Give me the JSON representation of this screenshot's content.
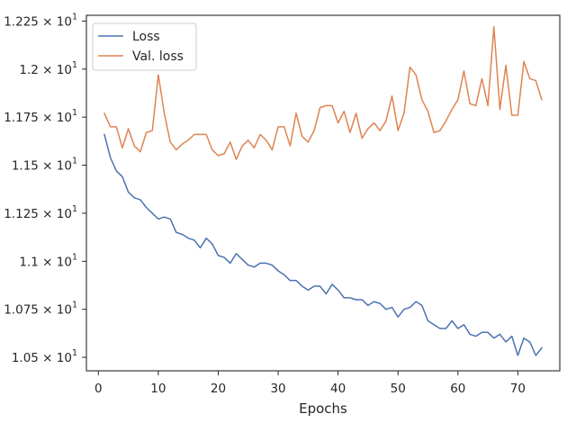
{
  "chart_data": {
    "type": "line",
    "title": "",
    "xlabel": "Epochs",
    "ylabel": "",
    "xlim": [
      -2,
      77
    ],
    "ylim": [
      10.43,
      12.28
    ],
    "grid": false,
    "legend_position": "top-left",
    "x_ticks": [
      0,
      10,
      20,
      30,
      40,
      50,
      60,
      70
    ],
    "x_tick_labels": [
      "0",
      "10",
      "20",
      "30",
      "40",
      "50",
      "60",
      "70"
    ],
    "y_ticks": [
      10.5,
      10.75,
      11.0,
      11.25,
      11.5,
      11.75,
      12.0,
      12.25
    ],
    "y_tick_labels": [
      {
        "mantissa": "1.05",
        "exponent": "1"
      },
      {
        "mantissa": "1.075",
        "exponent": "1"
      },
      {
        "mantissa": "1.1",
        "exponent": "1"
      },
      {
        "mantissa": "1.125",
        "exponent": "1"
      },
      {
        "mantissa": "1.15",
        "exponent": "1"
      },
      {
        "mantissa": "1.175",
        "exponent": "1"
      },
      {
        "mantissa": "1.2",
        "exponent": "1"
      },
      {
        "mantissa": "1.225",
        "exponent": "1"
      }
    ],
    "x": [
      1,
      2,
      3,
      4,
      5,
      6,
      7,
      8,
      9,
      10,
      11,
      12,
      13,
      14,
      15,
      16,
      17,
      18,
      19,
      20,
      21,
      22,
      23,
      24,
      25,
      26,
      27,
      28,
      29,
      30,
      31,
      32,
      33,
      34,
      35,
      36,
      37,
      38,
      39,
      40,
      41,
      42,
      43,
      44,
      45,
      46,
      47,
      48,
      49,
      50,
      51,
      52,
      53,
      54,
      55,
      56,
      57,
      58,
      59,
      60,
      61,
      62,
      63,
      64,
      65,
      66,
      67,
      68,
      69,
      70,
      71,
      72,
      73,
      74
    ],
    "series": [
      {
        "name": "Loss",
        "color": "#4c72b0",
        "values": [
          11.66,
          11.54,
          11.47,
          11.44,
          11.36,
          11.33,
          11.32,
          11.28,
          11.25,
          11.22,
          11.23,
          11.22,
          11.15,
          11.14,
          11.12,
          11.11,
          11.07,
          11.12,
          11.09,
          11.03,
          11.02,
          10.99,
          11.04,
          11.01,
          10.98,
          10.97,
          10.99,
          10.99,
          10.98,
          10.95,
          10.93,
          10.9,
          10.9,
          10.87,
          10.85,
          10.87,
          10.87,
          10.83,
          10.88,
          10.85,
          10.81,
          10.81,
          10.8,
          10.8,
          10.77,
          10.79,
          10.78,
          10.75,
          10.76,
          10.71,
          10.75,
          10.76,
          10.79,
          10.77,
          10.69,
          10.67,
          10.65,
          10.65,
          10.69,
          10.65,
          10.67,
          10.62,
          10.61,
          10.63,
          10.63,
          10.6,
          10.62,
          10.58,
          10.61,
          10.51,
          10.6,
          10.58,
          10.51,
          10.55
        ]
      },
      {
        "name": "Val. loss",
        "color": "#dd8452",
        "values": [
          11.77,
          11.7,
          11.7,
          11.59,
          11.69,
          11.6,
          11.57,
          11.67,
          11.68,
          11.97,
          11.77,
          11.62,
          11.58,
          11.61,
          11.63,
          11.66,
          11.66,
          11.66,
          11.58,
          11.55,
          11.56,
          11.62,
          11.53,
          11.6,
          11.63,
          11.59,
          11.66,
          11.63,
          11.58,
          11.7,
          11.7,
          11.6,
          11.77,
          11.65,
          11.62,
          11.68,
          11.8,
          11.81,
          11.81,
          11.72,
          11.78,
          11.67,
          11.77,
          11.64,
          11.69,
          11.72,
          11.68,
          11.73,
          11.86,
          11.68,
          11.77,
          12.01,
          11.97,
          11.84,
          11.78,
          11.67,
          11.68,
          11.73,
          11.79,
          11.84,
          11.99,
          11.82,
          11.81,
          11.95,
          11.81,
          12.22,
          11.79,
          12.02,
          11.76,
          11.76,
          12.04,
          11.95,
          11.94,
          11.84
        ]
      }
    ]
  }
}
